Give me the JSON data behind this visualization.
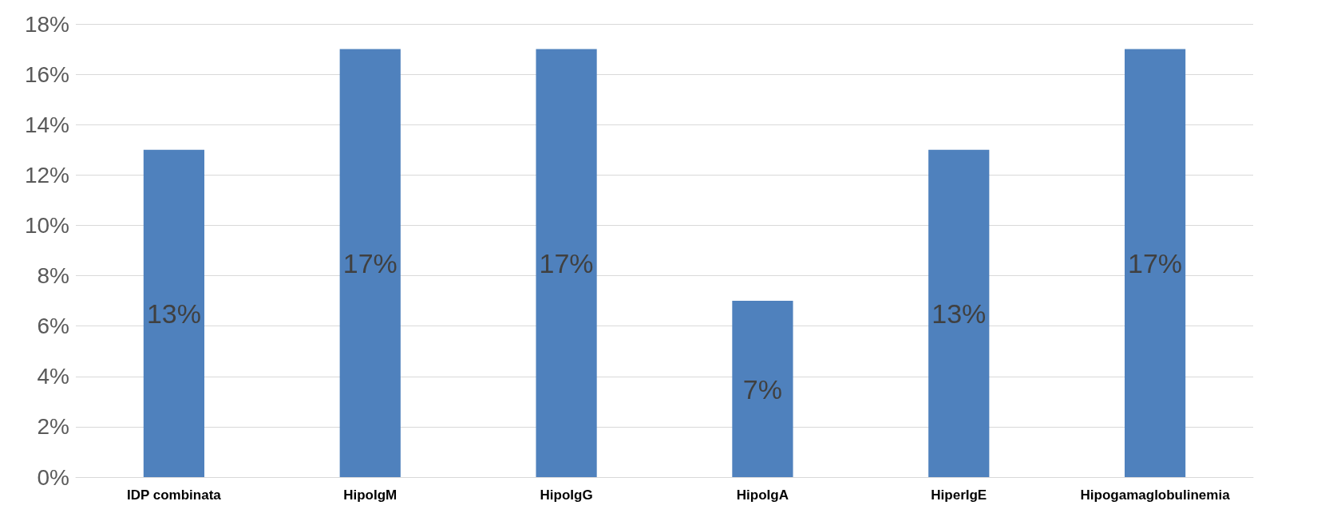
{
  "chart_data": {
    "type": "bar",
    "categories": [
      "IDP combinata",
      "HipoIgM",
      "HipoIgG",
      "HipoIgA",
      "HiperIgE",
      "Hipogamaglobulinemia"
    ],
    "values": [
      13,
      17,
      17,
      7,
      13,
      17
    ],
    "value_labels": [
      "13%",
      "17%",
      "17%",
      "7%",
      "13%",
      "17%"
    ],
    "color": "#4f81bd",
    "ylim": [
      0,
      18
    ],
    "yticks": [
      {
        "value": 0,
        "label": "0%"
      },
      {
        "value": 2,
        "label": "2%"
      },
      {
        "value": 4,
        "label": "4%"
      },
      {
        "value": 6,
        "label": "6%"
      },
      {
        "value": 8,
        "label": "8%"
      },
      {
        "value": 10,
        "label": "10%"
      },
      {
        "value": 12,
        "label": "12%"
      },
      {
        "value": 14,
        "label": "14%"
      },
      {
        "value": 16,
        "label": "16%"
      },
      {
        "value": 18,
        "label": "18%"
      }
    ],
    "grid": "y"
  }
}
